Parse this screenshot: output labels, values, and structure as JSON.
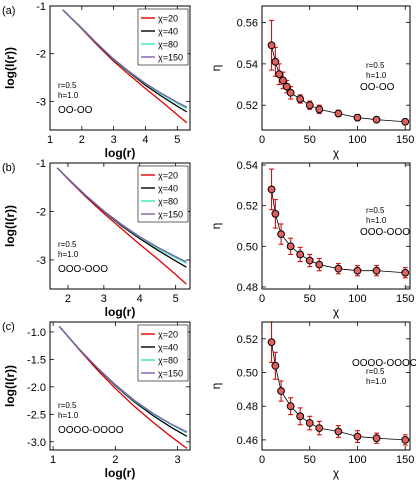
{
  "chart_data": [
    {
      "type": "line",
      "panel_label": "(a)",
      "xlabel": "log(r)",
      "ylabel": "log(I(r))",
      "xlim": [
        1.0,
        5.4
      ],
      "ylim": [
        -3.6,
        -1.0
      ],
      "xticks": [
        1,
        2,
        3,
        4,
        5
      ],
      "yticks": [
        -3,
        -2,
        -1
      ],
      "legend": "top-right",
      "annotation": [
        "r=0.5",
        "h=1.0"
      ],
      "glyph": "OO-OO",
      "series": [
        {
          "name": "χ=20",
          "color": "#e00000",
          "x": [
            1.4,
            2.0,
            2.5,
            3.0,
            3.5,
            4.0,
            4.5,
            5.0,
            5.3
          ],
          "y": [
            -1.08,
            -1.48,
            -1.83,
            -2.16,
            -2.45,
            -2.73,
            -3.0,
            -3.28,
            -3.45
          ]
        },
        {
          "name": "χ=40",
          "color": "#000000",
          "x": [
            1.4,
            2.0,
            2.5,
            3.0,
            3.5,
            4.0,
            4.5,
            5.0,
            5.3
          ],
          "y": [
            -1.08,
            -1.47,
            -1.81,
            -2.13,
            -2.4,
            -2.66,
            -2.89,
            -3.1,
            -3.22
          ]
        },
        {
          "name": "χ=80",
          "color": "#33e8b8",
          "x": [
            1.4,
            2.0,
            2.5,
            3.0,
            3.5,
            4.0,
            4.5,
            5.0,
            5.3
          ],
          "y": [
            -1.08,
            -1.47,
            -1.8,
            -2.12,
            -2.39,
            -2.63,
            -2.85,
            -3.04,
            -3.15
          ]
        },
        {
          "name": "χ=150",
          "color": "#7d5da8",
          "x": [
            1.4,
            2.0,
            2.5,
            3.0,
            3.5,
            4.0,
            4.5,
            5.0,
            5.3
          ],
          "y": [
            -1.08,
            -1.46,
            -1.8,
            -2.11,
            -2.38,
            -2.62,
            -2.83,
            -3.02,
            -3.12
          ]
        }
      ]
    },
    {
      "type": "scatter",
      "xlabel": "χ",
      "ylabel": "η",
      "xlim": [
        0,
        155
      ],
      "ylim": [
        0.508,
        0.568
      ],
      "xticks": [
        0,
        50,
        100,
        150
      ],
      "yticks": [
        0.52,
        0.54,
        0.56
      ],
      "annotation": [
        "r=0.5",
        "h=1.0"
      ],
      "glyph": "OO-OO",
      "series": [
        {
          "x": [
            10,
            14,
            18,
            22,
            26,
            30,
            40,
            50,
            60,
            80,
            100,
            120,
            150
          ],
          "y": [
            0.549,
            0.541,
            0.535,
            0.532,
            0.529,
            0.526,
            0.523,
            0.52,
            0.518,
            0.516,
            0.514,
            0.513,
            0.512
          ],
          "err": [
            0.012,
            0.007,
            0.005,
            0.004,
            0.003,
            0.003,
            0.002,
            0.002,
            0.002,
            0.0015,
            0.0015,
            0.0012,
            0.001
          ]
        }
      ]
    },
    {
      "type": "line",
      "panel_label": "(b)",
      "xlabel": "log(r)",
      "ylabel": "log(I(r))",
      "xlim": [
        1.5,
        5.4
      ],
      "ylim": [
        -3.6,
        -1.0
      ],
      "xticks": [
        2,
        3,
        4,
        5
      ],
      "yticks": [
        -3,
        -2,
        -1
      ],
      "legend": "top-right",
      "annotation": [
        "r=0.5",
        "h=1.0"
      ],
      "glyph": "OOO-OOO",
      "series": [
        {
          "name": "χ=20",
          "color": "#e00000",
          "x": [
            1.7,
            2.0,
            2.5,
            3.0,
            3.5,
            4.0,
            4.5,
            5.0,
            5.3
          ],
          "y": [
            -1.1,
            -1.33,
            -1.7,
            -2.04,
            -2.36,
            -2.68,
            -2.98,
            -3.3,
            -3.5
          ]
        },
        {
          "name": "χ=40",
          "color": "#000000",
          "x": [
            1.7,
            2.0,
            2.5,
            3.0,
            3.5,
            4.0,
            4.5,
            5.0,
            5.3
          ],
          "y": [
            -1.1,
            -1.32,
            -1.68,
            -2.0,
            -2.3,
            -2.56,
            -2.8,
            -3.02,
            -3.15
          ]
        },
        {
          "name": "χ=80",
          "color": "#33e8b8",
          "x": [
            1.7,
            2.0,
            2.5,
            3.0,
            3.5,
            4.0,
            4.5,
            5.0,
            5.3
          ],
          "y": [
            -1.1,
            -1.32,
            -1.67,
            -1.99,
            -2.28,
            -2.53,
            -2.76,
            -2.96,
            -3.07
          ]
        },
        {
          "name": "χ=150",
          "color": "#7d5da8",
          "x": [
            1.7,
            2.0,
            2.5,
            3.0,
            3.5,
            4.0,
            4.5,
            5.0,
            5.3
          ],
          "y": [
            -1.1,
            -1.32,
            -1.67,
            -1.99,
            -2.27,
            -2.52,
            -2.74,
            -2.93,
            -3.04
          ]
        }
      ]
    },
    {
      "type": "scatter",
      "xlabel": "χ",
      "ylabel": "η",
      "xlim": [
        0,
        155
      ],
      "ylim": [
        0.479,
        0.541
      ],
      "xticks": [
        0,
        50,
        100,
        150
      ],
      "yticks": [
        0.48,
        0.5,
        0.52,
        0.54
      ],
      "annotation": [
        "r=0.5",
        "h=1.0"
      ],
      "glyph": "OOO-OOO",
      "series": [
        {
          "x": [
            10,
            14,
            20,
            30,
            40,
            50,
            60,
            80,
            100,
            120,
            150
          ],
          "y": [
            0.528,
            0.516,
            0.506,
            0.5,
            0.496,
            0.493,
            0.491,
            0.489,
            0.488,
            0.488,
            0.487
          ],
          "err": [
            0.01,
            0.007,
            0.005,
            0.004,
            0.0035,
            0.003,
            0.003,
            0.0025,
            0.0025,
            0.0025,
            0.0025
          ]
        }
      ]
    },
    {
      "type": "line",
      "panel_label": "(c)",
      "xlabel": "log(r)",
      "ylabel": "log(I(r))",
      "xlim": [
        0.95,
        3.2
      ],
      "ylim": [
        -3.15,
        -0.82
      ],
      "xticks": [
        1,
        2,
        3
      ],
      "yticks": [
        -3.0,
        -2.5,
        -2.0,
        -1.5,
        -1.0
      ],
      "legend": "top-right",
      "annotation": [
        "r=0.5",
        "h=1.0"
      ],
      "glyph": "OOOO-OOOO",
      "series": [
        {
          "name": "χ=20",
          "color": "#e00000",
          "x": [
            1.1,
            1.4,
            1.7,
            2.0,
            2.3,
            2.6,
            2.9,
            3.15
          ],
          "y": [
            -0.9,
            -1.3,
            -1.68,
            -2.03,
            -2.35,
            -2.64,
            -2.91,
            -3.12
          ]
        },
        {
          "name": "χ=40",
          "color": "#000000",
          "x": [
            1.1,
            1.4,
            1.7,
            2.0,
            2.3,
            2.6,
            2.9,
            3.15
          ],
          "y": [
            -0.9,
            -1.29,
            -1.65,
            -1.98,
            -2.27,
            -2.52,
            -2.74,
            -2.9
          ]
        },
        {
          "name": "χ=80",
          "color": "#33e8b8",
          "x": [
            1.1,
            1.4,
            1.7,
            2.0,
            2.3,
            2.6,
            2.9,
            3.15
          ],
          "y": [
            -0.9,
            -1.29,
            -1.64,
            -1.97,
            -2.25,
            -2.49,
            -2.69,
            -2.84
          ]
        },
        {
          "name": "χ=150",
          "color": "#7d5da8",
          "x": [
            1.1,
            1.4,
            1.7,
            2.0,
            2.3,
            2.6,
            2.9,
            3.15
          ],
          "y": [
            -0.9,
            -1.29,
            -1.64,
            -1.96,
            -2.24,
            -2.48,
            -2.68,
            -2.82
          ]
        }
      ]
    },
    {
      "type": "scatter",
      "xlabel": "χ",
      "ylabel": "η",
      "xlim": [
        0,
        155
      ],
      "ylim": [
        0.454,
        0.53
      ],
      "xticks": [
        0,
        50,
        100,
        150
      ],
      "yticks": [
        0.46,
        0.48,
        0.5,
        0.52
      ],
      "annotation": [
        "r=0.5",
        "h=1.0"
      ],
      "glyph": "OOOO-OOOO",
      "series": [
        {
          "x": [
            10,
            14,
            20,
            30,
            40,
            50,
            60,
            80,
            100,
            120,
            150
          ],
          "y": [
            0.518,
            0.504,
            0.489,
            0.48,
            0.474,
            0.47,
            0.467,
            0.465,
            0.462,
            0.461,
            0.46
          ],
          "err": [
            0.012,
            0.008,
            0.006,
            0.005,
            0.005,
            0.004,
            0.004,
            0.0035,
            0.0035,
            0.003,
            0.003
          ]
        }
      ]
    }
  ]
}
